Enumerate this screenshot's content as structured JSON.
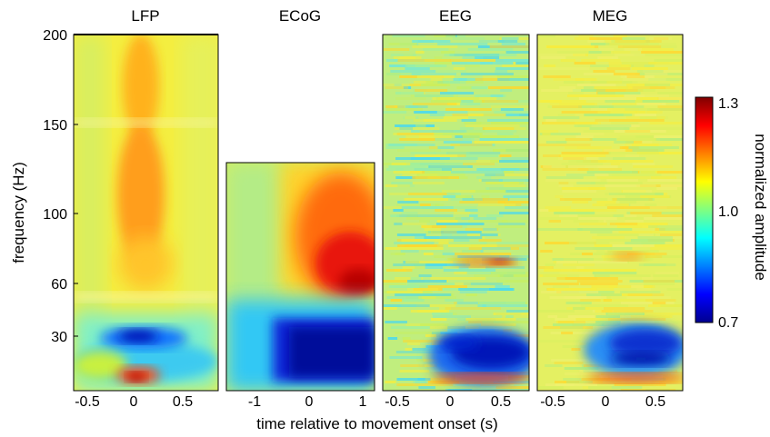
{
  "chart_data": {
    "type": "heatmap",
    "panels": [
      {
        "title": "LFP",
        "x_ticks": [
          "-0.5",
          "0",
          "0.5"
        ],
        "xlim": [
          -0.7,
          0.85
        ],
        "ylim": [
          0,
          200
        ]
      },
      {
        "title": "ECoG",
        "x_ticks": [
          "-1",
          "0",
          "1"
        ],
        "xlim": [
          -1.5,
          1.3
        ],
        "ylim": [
          0,
          128
        ]
      },
      {
        "title": "EEG",
        "x_ticks": [
          "-0.5",
          "0",
          "0.5"
        ],
        "xlim": [
          -0.55,
          0.75
        ],
        "ylim": [
          0,
          200
        ]
      },
      {
        "title": "MEG",
        "x_ticks": [
          "-0.5",
          "0",
          "0.5"
        ],
        "xlim": [
          -0.55,
          0.75
        ],
        "ylim": [
          0,
          200
        ]
      }
    ],
    "y_ticks": [
      "200",
      "150",
      "100",
      "60",
      "30"
    ],
    "ylabel": "frequency (Hz)",
    "xlabel": "time relative to movement onset (s)",
    "colorbar": {
      "label": "normalized amplitude",
      "ticks": [
        "1.3",
        "1.0",
        "0.7"
      ],
      "range": [
        0.7,
        1.3
      ],
      "colormap": "jet"
    }
  }
}
